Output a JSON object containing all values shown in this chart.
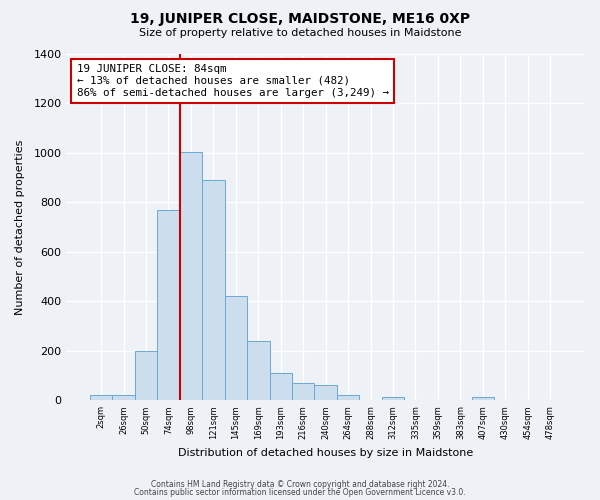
{
  "title": "19, JUNIPER CLOSE, MAIDSTONE, ME16 0XP",
  "subtitle": "Size of property relative to detached houses in Maidstone",
  "xlabel": "Distribution of detached houses by size in Maidstone",
  "ylabel": "Number of detached properties",
  "bar_labels": [
    "2sqm",
    "26sqm",
    "50sqm",
    "74sqm",
    "98sqm",
    "121sqm",
    "145sqm",
    "169sqm",
    "193sqm",
    "216sqm",
    "240sqm",
    "264sqm",
    "288sqm",
    "312sqm",
    "335sqm",
    "359sqm",
    "383sqm",
    "407sqm",
    "430sqm",
    "454sqm",
    "478sqm"
  ],
  "bar_values": [
    20,
    20,
    200,
    770,
    1005,
    890,
    420,
    240,
    110,
    70,
    60,
    20,
    0,
    15,
    0,
    0,
    0,
    15,
    0,
    0,
    0
  ],
  "bar_color": "#ccdded",
  "bar_edge_color": "#6aaad4",
  "vline_x": 3.5,
  "vline_color": "#cc0000",
  "annotation_title": "19 JUNIPER CLOSE: 84sqm",
  "annotation_line1": "← 13% of detached houses are smaller (482)",
  "annotation_line2": "86% of semi-detached houses are larger (3,249) →",
  "annotation_box_color": "#ffffff",
  "annotation_box_edge": "#cc0000",
  "ylim": [
    0,
    1400
  ],
  "yticks": [
    0,
    200,
    400,
    600,
    800,
    1000,
    1200,
    1400
  ],
  "footnote1": "Contains HM Land Registry data © Crown copyright and database right 2024.",
  "footnote2": "Contains public sector information licensed under the Open Government Licence v3.0.",
  "background_color": "#eef2f7",
  "plot_bg_color": "#eef2f7"
}
